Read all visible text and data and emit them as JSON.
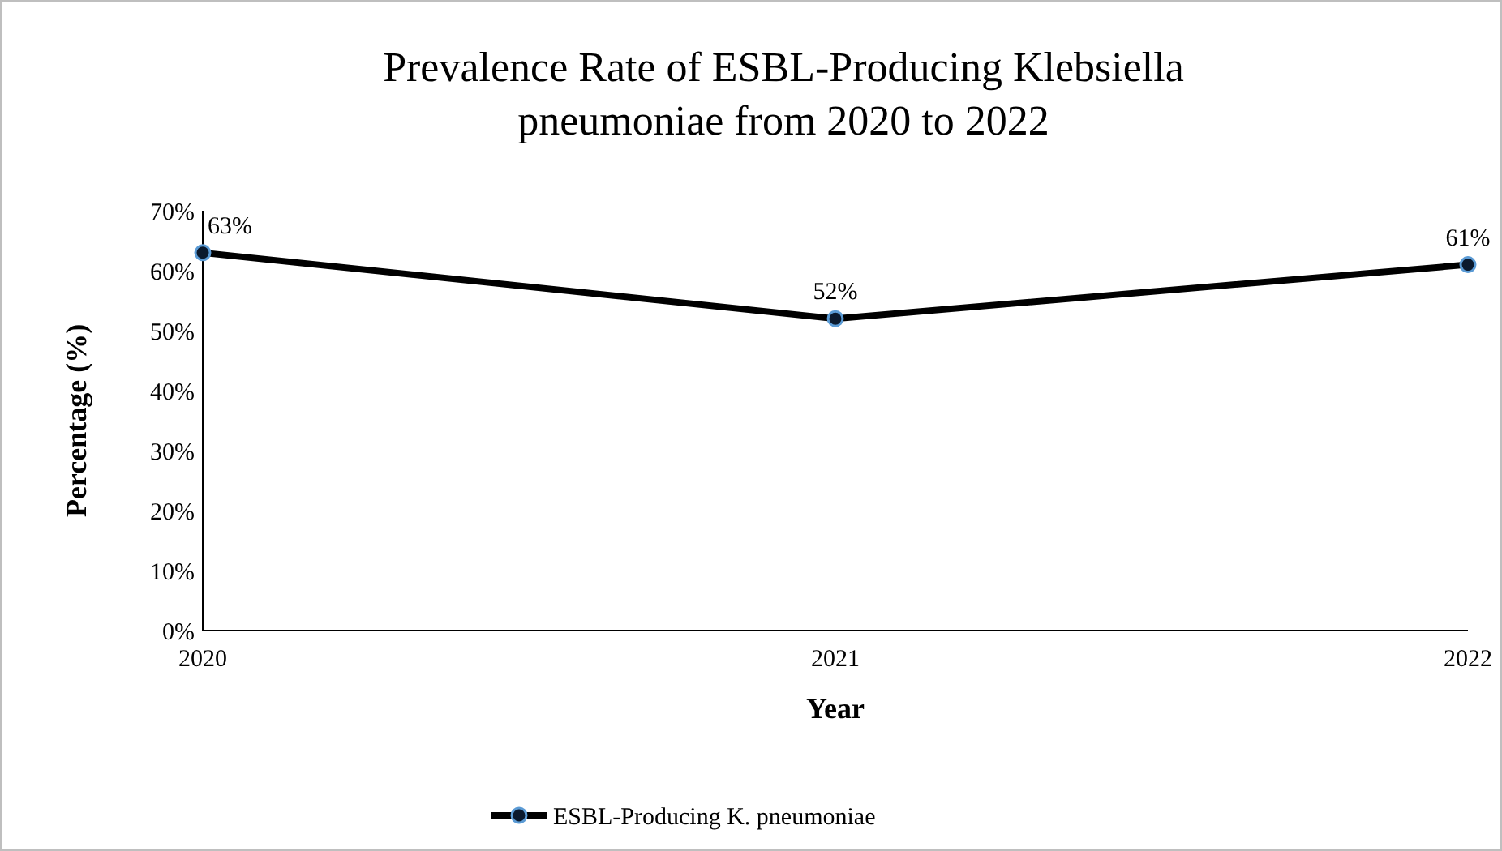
{
  "chart_data": {
    "type": "line",
    "title": "Prevalence Rate of ESBL-Producing Klebsiella pneumoniae from 2020 to 2022",
    "xlabel": "Year",
    "ylabel": "Percentage (%)",
    "categories": [
      "2020",
      "2021",
      "2022"
    ],
    "series": [
      {
        "name": "ESBL-Producing K. pneumoniae",
        "color": "#000000",
        "values": [
          63,
          52,
          61
        ],
        "value_labels": [
          "63%",
          "52%",
          "61%"
        ]
      }
    ],
    "ylim": [
      0,
      70
    ],
    "yticks": [
      {
        "value": 0,
        "label": "0%"
      },
      {
        "value": 10,
        "label": "10%"
      },
      {
        "value": 20,
        "label": "20%"
      },
      {
        "value": 30,
        "label": "30%"
      },
      {
        "value": 40,
        "label": "40%"
      },
      {
        "value": 50,
        "label": "50%"
      },
      {
        "value": 60,
        "label": "60%"
      },
      {
        "value": 70,
        "label": "70%"
      }
    ],
    "grid": false,
    "legend": "bottom",
    "marker": "circle",
    "line_style": "solid"
  }
}
